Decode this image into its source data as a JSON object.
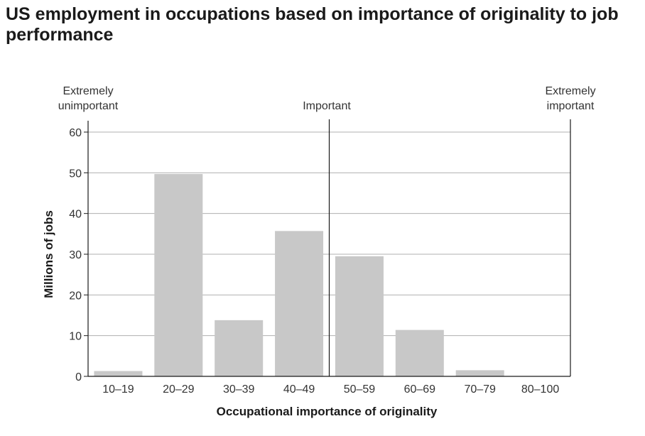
{
  "chart_data": {
    "type": "bar",
    "title": "US employment in occupations based on importance of originality to job performance",
    "xlabel": "Occupational importance of originality",
    "ylabel": "Millions of jobs",
    "categories": [
      "10–19",
      "20–29",
      "30–39",
      "40–49",
      "50–59",
      "60–69",
      "70–79",
      "80–100"
    ],
    "values": [
      1.3,
      49.7,
      13.8,
      35.7,
      29.5,
      11.4,
      1.5,
      0
    ],
    "ylim": [
      0,
      60
    ],
    "yticks": [
      0,
      10,
      20,
      30,
      40,
      50,
      60
    ],
    "grid": true,
    "bar_color": "#c8c8c8",
    "grid_color": "#b0b0b0",
    "annotations": {
      "left": [
        "Extremely",
        "unimportant"
      ],
      "center": "Important",
      "right": [
        "Extremely",
        "important"
      ]
    }
  }
}
